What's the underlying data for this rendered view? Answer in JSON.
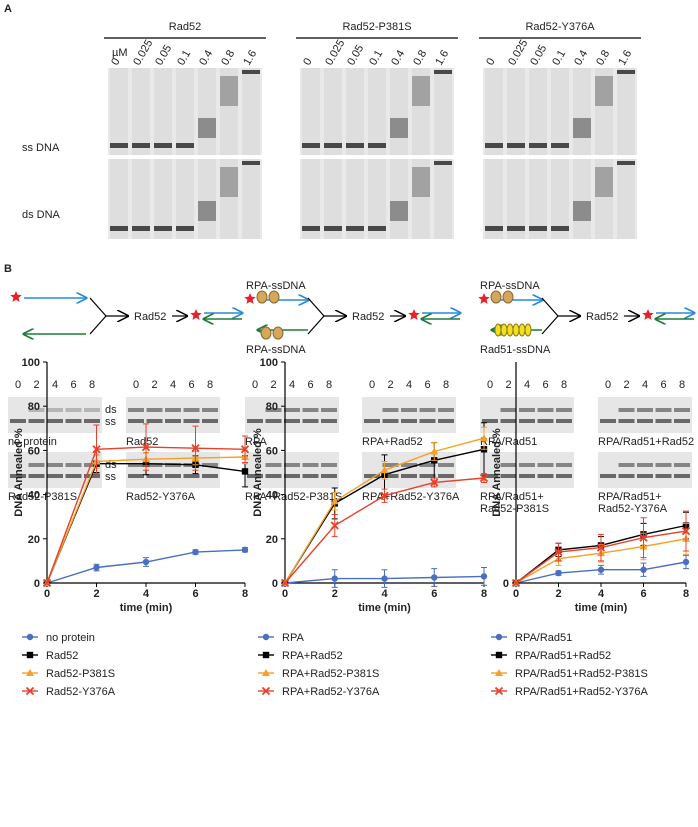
{
  "panel_a": {
    "label": "A",
    "groups": [
      "Rad52",
      "Rad52-P381S",
      "Rad52-Y376A"
    ],
    "unit": "µM",
    "concentrations": [
      "0",
      "0.025",
      "0.05",
      "0.1",
      "0.4",
      "0.8",
      "1.6"
    ],
    "rows": [
      "ss DNA",
      "ds DNA"
    ]
  },
  "panel_b": {
    "label": "B",
    "schematics": [
      {
        "protein": "Rad52"
      },
      {
        "top": "RPA-ssDNA",
        "bottom": "RPA-ssDNA",
        "protein": "Rad52"
      },
      {
        "top": "RPA-ssDNA",
        "bottom": "Rad51-ssDNA",
        "protein": "Rad52"
      }
    ],
    "gels": {
      "times": [
        "0",
        "2",
        "4",
        "6",
        "8"
      ],
      "bands": [
        "ds",
        "ss"
      ],
      "labels": [
        [
          "no protein"
        ],
        [
          "Rad52"
        ],
        [
          "RPA"
        ],
        [
          "RPA+Rad52"
        ],
        [
          "RPA/Rad51"
        ],
        [
          "RPA/Rad51+Rad52"
        ],
        [
          "Rad52-P381S"
        ],
        [
          "Rad52-Y376A"
        ],
        [
          "RPA+Rad52-P381S"
        ],
        [
          "RPA+Rad52-Y376A"
        ],
        [
          "RPA/Rad51+",
          "Rad52-P381S"
        ],
        [
          "RPA/Rad51+",
          "Rad52-Y376A"
        ]
      ]
    }
  },
  "chart_data": [
    {
      "type": "line",
      "x_label": "time (min)",
      "y_label": "DNA Annealed %",
      "x": [
        0,
        2,
        4,
        6,
        8
      ],
      "xlim": [
        0,
        8
      ],
      "xticks": [
        0,
        2,
        4,
        6,
        8
      ],
      "ylim": [
        0,
        100
      ],
      "yticks": [
        0,
        20,
        40,
        60,
        80,
        100
      ],
      "series": [
        {
          "name": "no protein",
          "color": "#4a6fc0",
          "marker": "circle",
          "values": [
            0,
            7,
            9.5,
            14,
            15
          ],
          "errors": [
            0,
            1.5,
            2,
            1,
            1
          ]
        },
        {
          "name": "Rad52",
          "color": "#000000",
          "marker": "square",
          "values": [
            0,
            54,
            54,
            53.5,
            50.5
          ],
          "errors": [
            0,
            4,
            5,
            4,
            7
          ]
        },
        {
          "name": "Rad52-P381S",
          "color": "#f5a028",
          "marker": "triangle",
          "values": [
            0,
            55,
            56,
            56.5,
            57
          ],
          "errors": [
            0,
            3,
            3,
            3,
            3
          ]
        },
        {
          "name": "Rad52-Y376A",
          "color": "#e8402a",
          "marker": "x",
          "values": [
            0,
            60.5,
            61.5,
            61,
            60.5
          ],
          "errors": [
            0,
            11,
            10.5,
            10,
            6
          ]
        }
      ]
    },
    {
      "type": "line",
      "x_label": "time (min)",
      "y_label": "DNA Annealed %",
      "x": [
        0,
        2,
        4,
        6,
        8
      ],
      "xlim": [
        0,
        8
      ],
      "xticks": [
        0,
        2,
        4,
        6,
        8
      ],
      "ylim": [
        0,
        100
      ],
      "yticks": [
        0,
        20,
        40,
        60,
        80,
        100
      ],
      "series": [
        {
          "name": "RPA",
          "color": "#4a6fc0",
          "marker": "circle",
          "values": [
            0,
            2,
            2,
            2.5,
            3
          ],
          "errors": [
            0,
            4,
            4,
            4,
            4
          ]
        },
        {
          "name": "RPA+Rad52",
          "color": "#000000",
          "marker": "square",
          "values": [
            0,
            36,
            49,
            55.5,
            60.5
          ],
          "errors": [
            0,
            7,
            9,
            8,
            12
          ]
        },
        {
          "name": "RPA+Rad52-P381S",
          "color": "#f5a028",
          "marker": "triangle",
          "values": [
            0,
            37,
            51,
            59.5,
            65.5
          ],
          "errors": [
            0,
            4,
            4,
            4,
            5
          ]
        },
        {
          "name": "RPA+Rad52-Y376A",
          "color": "#e8402a",
          "marker": "x",
          "values": [
            0,
            26,
            39.5,
            45.5,
            47.5
          ],
          "errors": [
            0,
            5,
            3,
            2,
            2
          ]
        }
      ]
    },
    {
      "type": "line",
      "x_label": "time (min)",
      "y_label": "DNA Annealed %",
      "x": [
        0,
        2,
        4,
        6,
        8
      ],
      "xlim": [
        0,
        8
      ],
      "xticks": [
        0,
        2,
        4,
        6,
        8
      ],
      "ylim": [
        0,
        100
      ],
      "yticks": [
        0
      ],
      "series": [
        {
          "name": "RPA/Rad51",
          "color": "#4a6fc0",
          "marker": "circle",
          "values": [
            0,
            4.5,
            6,
            6,
            9.5
          ],
          "errors": [
            0,
            1,
            2,
            3,
            3
          ]
        },
        {
          "name": "RPA/Rad51+Rad52",
          "color": "#000000",
          "marker": "square",
          "values": [
            0,
            15,
            17,
            22,
            26
          ],
          "errors": [
            0,
            3,
            4,
            5,
            6
          ]
        },
        {
          "name": "RPA/Rad51+Rad52-P381S",
          "color": "#f5a028",
          "marker": "triangle",
          "values": [
            0,
            11,
            13.5,
            16.5,
            20
          ],
          "errors": [
            0,
            3,
            4,
            6,
            7
          ]
        },
        {
          "name": "RPA/Rad51+Rad52-Y376A",
          "color": "#e8402a",
          "marker": "x",
          "values": [
            0,
            14,
            16,
            20.5,
            23.5
          ],
          "errors": [
            0,
            4,
            6,
            9,
            9
          ]
        }
      ]
    }
  ]
}
